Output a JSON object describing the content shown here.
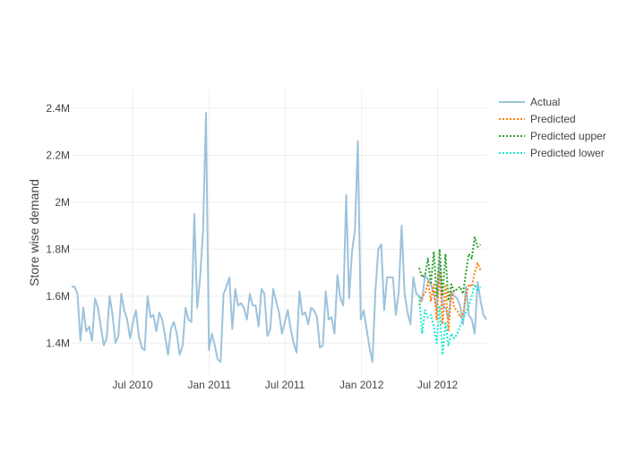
{
  "chart_data": {
    "type": "line",
    "title": "",
    "xlabel": "",
    "ylabel": "Store wise demand",
    "x_range": [
      "2010-02-05",
      "2012-10-26"
    ],
    "ylim": [
      1260000,
      2480000
    ],
    "y_ticks": [
      {
        "value": 1400000,
        "label": "1.4M"
      },
      {
        "value": 1600000,
        "label": "1.6M"
      },
      {
        "value": 1800000,
        "label": "1.8M"
      },
      {
        "value": 2000000,
        "label": "2M"
      },
      {
        "value": 2200000,
        "label": "2.2M"
      },
      {
        "value": 2400000,
        "label": "2.4M"
      }
    ],
    "x_ticks": [
      {
        "value": "2010-07-01",
        "label": "Jul 2010"
      },
      {
        "value": "2011-01-01",
        "label": "Jan 2011"
      },
      {
        "value": "2011-07-01",
        "label": "Jul 2011"
      },
      {
        "value": "2012-01-01",
        "label": "Jan 2012"
      },
      {
        "value": "2012-07-01",
        "label": "Jul 2012"
      }
    ],
    "grid": true,
    "legend_position": "right",
    "series": [
      {
        "name": "Actual",
        "color": "#9dc3dc",
        "dash": "solid",
        "points": [
          [
            "2010-02-05",
            1640000
          ],
          [
            "2010-02-12",
            1640000
          ],
          [
            "2010-02-19",
            1610000
          ],
          [
            "2010-02-26",
            1410000
          ],
          [
            "2010-03-05",
            1550000
          ],
          [
            "2010-03-12",
            1450000
          ],
          [
            "2010-03-19",
            1470000
          ],
          [
            "2010-03-26",
            1410000
          ],
          [
            "2010-04-02",
            1590000
          ],
          [
            "2010-04-09",
            1550000
          ],
          [
            "2010-04-16",
            1470000
          ],
          [
            "2010-04-23",
            1390000
          ],
          [
            "2010-04-30",
            1420000
          ],
          [
            "2010-05-07",
            1600000
          ],
          [
            "2010-05-14",
            1520000
          ],
          [
            "2010-05-21",
            1400000
          ],
          [
            "2010-05-28",
            1430000
          ],
          [
            "2010-06-04",
            1610000
          ],
          [
            "2010-06-11",
            1540000
          ],
          [
            "2010-06-18",
            1500000
          ],
          [
            "2010-06-25",
            1420000
          ],
          [
            "2010-07-02",
            1490000
          ],
          [
            "2010-07-09",
            1540000
          ],
          [
            "2010-07-16",
            1430000
          ],
          [
            "2010-07-23",
            1380000
          ],
          [
            "2010-07-30",
            1370000
          ],
          [
            "2010-08-06",
            1600000
          ],
          [
            "2010-08-13",
            1510000
          ],
          [
            "2010-08-20",
            1520000
          ],
          [
            "2010-08-27",
            1450000
          ],
          [
            "2010-09-03",
            1530000
          ],
          [
            "2010-09-10",
            1500000
          ],
          [
            "2010-09-17",
            1430000
          ],
          [
            "2010-09-24",
            1350000
          ],
          [
            "2010-10-01",
            1460000
          ],
          [
            "2010-10-08",
            1490000
          ],
          [
            "2010-10-15",
            1440000
          ],
          [
            "2010-10-22",
            1350000
          ],
          [
            "2010-10-29",
            1390000
          ],
          [
            "2010-11-05",
            1550000
          ],
          [
            "2010-11-12",
            1500000
          ],
          [
            "2010-11-19",
            1490000
          ],
          [
            "2010-11-26",
            1950000
          ],
          [
            "2010-12-03",
            1550000
          ],
          [
            "2010-12-10",
            1680000
          ],
          [
            "2010-12-17",
            1880000
          ],
          [
            "2010-12-24",
            2380000
          ],
          [
            "2010-12-31",
            1370000
          ],
          [
            "2011-01-07",
            1440000
          ],
          [
            "2011-01-14",
            1390000
          ],
          [
            "2011-01-21",
            1330000
          ],
          [
            "2011-01-28",
            1320000
          ],
          [
            "2011-02-04",
            1610000
          ],
          [
            "2011-02-11",
            1640000
          ],
          [
            "2011-02-18",
            1680000
          ],
          [
            "2011-02-25",
            1460000
          ],
          [
            "2011-03-04",
            1630000
          ],
          [
            "2011-03-11",
            1560000
          ],
          [
            "2011-03-18",
            1570000
          ],
          [
            "2011-03-25",
            1550000
          ],
          [
            "2011-04-01",
            1500000
          ],
          [
            "2011-04-08",
            1610000
          ],
          [
            "2011-04-15",
            1560000
          ],
          [
            "2011-04-22",
            1560000
          ],
          [
            "2011-04-29",
            1470000
          ],
          [
            "2011-05-06",
            1630000
          ],
          [
            "2011-05-13",
            1610000
          ],
          [
            "2011-05-20",
            1430000
          ],
          [
            "2011-05-27",
            1460000
          ],
          [
            "2011-06-03",
            1630000
          ],
          [
            "2011-06-10",
            1580000
          ],
          [
            "2011-06-17",
            1530000
          ],
          [
            "2011-06-24",
            1440000
          ],
          [
            "2011-07-01",
            1490000
          ],
          [
            "2011-07-08",
            1540000
          ],
          [
            "2011-07-15",
            1460000
          ],
          [
            "2011-07-22",
            1400000
          ],
          [
            "2011-07-29",
            1360000
          ],
          [
            "2011-08-05",
            1620000
          ],
          [
            "2011-08-12",
            1520000
          ],
          [
            "2011-08-19",
            1530000
          ],
          [
            "2011-08-26",
            1480000
          ],
          [
            "2011-09-02",
            1550000
          ],
          [
            "2011-09-09",
            1540000
          ],
          [
            "2011-09-16",
            1510000
          ],
          [
            "2011-09-23",
            1380000
          ],
          [
            "2011-09-30",
            1390000
          ],
          [
            "2011-10-07",
            1620000
          ],
          [
            "2011-10-14",
            1500000
          ],
          [
            "2011-10-21",
            1510000
          ],
          [
            "2011-10-28",
            1440000
          ],
          [
            "2011-11-04",
            1690000
          ],
          [
            "2011-11-11",
            1590000
          ],
          [
            "2011-11-18",
            1560000
          ],
          [
            "2011-11-25",
            2030000
          ],
          [
            "2011-12-02",
            1590000
          ],
          [
            "2011-12-09",
            1790000
          ],
          [
            "2011-12-16",
            1880000
          ],
          [
            "2011-12-23",
            2260000
          ],
          [
            "2011-12-30",
            1500000
          ],
          [
            "2012-01-06",
            1540000
          ],
          [
            "2012-01-13",
            1460000
          ],
          [
            "2012-01-20",
            1380000
          ],
          [
            "2012-01-27",
            1320000
          ],
          [
            "2012-02-03",
            1620000
          ],
          [
            "2012-02-10",
            1800000
          ],
          [
            "2012-02-17",
            1820000
          ],
          [
            "2012-02-24",
            1540000
          ],
          [
            "2012-03-02",
            1680000
          ],
          [
            "2012-03-09",
            1680000
          ],
          [
            "2012-03-16",
            1680000
          ],
          [
            "2012-03-23",
            1520000
          ],
          [
            "2012-03-30",
            1620000
          ],
          [
            "2012-04-06",
            1900000
          ],
          [
            "2012-04-13",
            1610000
          ],
          [
            "2012-04-20",
            1530000
          ],
          [
            "2012-04-27",
            1480000
          ],
          [
            "2012-05-04",
            1680000
          ],
          [
            "2012-05-11",
            1610000
          ],
          [
            "2012-05-18",
            1600000
          ],
          [
            "2012-05-25",
            1580000
          ],
          [
            "2012-06-01",
            1690000
          ],
          [
            "2012-06-08",
            1670000
          ],
          [
            "2012-06-15",
            1650000
          ],
          [
            "2012-06-22",
            1610000
          ],
          [
            "2012-06-29",
            1540000
          ],
          [
            "2012-07-06",
            1750000
          ],
          [
            "2012-07-13",
            1560000
          ],
          [
            "2012-07-20",
            1550000
          ],
          [
            "2012-07-27",
            1500000
          ],
          [
            "2012-08-03",
            1620000
          ],
          [
            "2012-08-10",
            1600000
          ],
          [
            "2012-08-17",
            1590000
          ],
          [
            "2012-08-24",
            1560000
          ],
          [
            "2012-08-31",
            1480000
          ],
          [
            "2012-09-07",
            1640000
          ],
          [
            "2012-09-14",
            1520000
          ],
          [
            "2012-09-21",
            1500000
          ],
          [
            "2012-09-28",
            1440000
          ],
          [
            "2012-10-05",
            1660000
          ],
          [
            "2012-10-12",
            1580000
          ],
          [
            "2012-10-19",
            1520000
          ],
          [
            "2012-10-26",
            1500000
          ]
        ]
      },
      {
        "name": "Predicted",
        "color": "#ff7f0e",
        "dash": "2,2",
        "points": [
          [
            "2012-05-18",
            1560000
          ],
          [
            "2012-05-25",
            1600000
          ],
          [
            "2012-06-01",
            1610000
          ],
          [
            "2012-06-08",
            1660000
          ],
          [
            "2012-06-15",
            1580000
          ],
          [
            "2012-06-22",
            1650000
          ],
          [
            "2012-06-29",
            1500000
          ],
          [
            "2012-07-06",
            1700000
          ],
          [
            "2012-07-13",
            1480000
          ],
          [
            "2012-07-20",
            1650000
          ],
          [
            "2012-07-27",
            1450000
          ],
          [
            "2012-08-03",
            1620000
          ],
          [
            "2012-08-10",
            1550000
          ],
          [
            "2012-08-17",
            1540000
          ],
          [
            "2012-08-24",
            1510000
          ],
          [
            "2012-08-31",
            1520000
          ],
          [
            "2012-09-07",
            1600000
          ],
          [
            "2012-09-14",
            1650000
          ],
          [
            "2012-09-21",
            1640000
          ],
          [
            "2012-09-28",
            1700000
          ],
          [
            "2012-10-05",
            1740000
          ],
          [
            "2012-10-12",
            1710000
          ]
        ]
      },
      {
        "name": "Predicted upper",
        "color": "#2ca02c",
        "dash": "2,2",
        "points": [
          [
            "2012-05-18",
            1720000
          ],
          [
            "2012-05-25",
            1680000
          ],
          [
            "2012-06-01",
            1690000
          ],
          [
            "2012-06-08",
            1760000
          ],
          [
            "2012-06-15",
            1650000
          ],
          [
            "2012-06-22",
            1790000
          ],
          [
            "2012-06-29",
            1600000
          ],
          [
            "2012-07-06",
            1800000
          ],
          [
            "2012-07-13",
            1600000
          ],
          [
            "2012-07-20",
            1780000
          ],
          [
            "2012-07-27",
            1580000
          ],
          [
            "2012-08-03",
            1650000
          ],
          [
            "2012-08-10",
            1620000
          ],
          [
            "2012-08-17",
            1630000
          ],
          [
            "2012-08-24",
            1640000
          ],
          [
            "2012-08-31",
            1610000
          ],
          [
            "2012-09-07",
            1700000
          ],
          [
            "2012-09-14",
            1780000
          ],
          [
            "2012-09-21",
            1760000
          ],
          [
            "2012-09-28",
            1850000
          ],
          [
            "2012-10-05",
            1810000
          ],
          [
            "2012-10-12",
            1820000
          ]
        ]
      },
      {
        "name": "Predicted lower",
        "color": "#17e8d0",
        "dash": "2,2",
        "points": [
          [
            "2012-05-18",
            1600000
          ],
          [
            "2012-05-25",
            1440000
          ],
          [
            "2012-06-01",
            1540000
          ],
          [
            "2012-06-08",
            1510000
          ],
          [
            "2012-06-15",
            1520000
          ],
          [
            "2012-06-22",
            1470000
          ],
          [
            "2012-06-29",
            1400000
          ],
          [
            "2012-07-06",
            1560000
          ],
          [
            "2012-07-13",
            1350000
          ],
          [
            "2012-07-20",
            1490000
          ],
          [
            "2012-07-27",
            1390000
          ],
          [
            "2012-08-03",
            1440000
          ],
          [
            "2012-08-10",
            1420000
          ],
          [
            "2012-08-17",
            1440000
          ],
          [
            "2012-08-24",
            1470000
          ],
          [
            "2012-08-31",
            1500000
          ],
          [
            "2012-09-07",
            1530000
          ],
          [
            "2012-09-14",
            1560000
          ],
          [
            "2012-09-21",
            1600000
          ],
          [
            "2012-09-28",
            1650000
          ],
          [
            "2012-10-05",
            1620000
          ],
          [
            "2012-10-12",
            1640000
          ]
        ]
      }
    ]
  }
}
